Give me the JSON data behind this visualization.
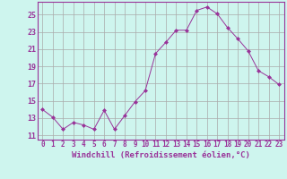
{
  "x": [
    0,
    1,
    2,
    3,
    4,
    5,
    6,
    7,
    8,
    9,
    10,
    11,
    12,
    13,
    14,
    15,
    16,
    17,
    18,
    19,
    20,
    21,
    22,
    23
  ],
  "y": [
    14.0,
    13.1,
    11.7,
    12.5,
    12.2,
    11.7,
    13.9,
    11.7,
    13.3,
    14.9,
    16.2,
    20.5,
    21.8,
    23.2,
    23.2,
    25.5,
    25.9,
    25.1,
    23.5,
    22.2,
    20.8,
    18.5,
    17.8,
    16.9
  ],
  "line_color": "#993399",
  "marker": "D",
  "marker_size": 2,
  "bg_color": "#cef5ee",
  "grid_color": "#aaaaaa",
  "ylabel_ticks": [
    11,
    13,
    15,
    17,
    19,
    21,
    23,
    25
  ],
  "xlabel": "Windchill (Refroidissement éolien,°C)",
  "ylim": [
    10.5,
    26.5
  ],
  "xlim": [
    -0.5,
    23.5
  ],
  "tick_color": "#993399",
  "label_color": "#993399",
  "tick_fontsize": 5.5,
  "xlabel_fontsize": 6.5
}
